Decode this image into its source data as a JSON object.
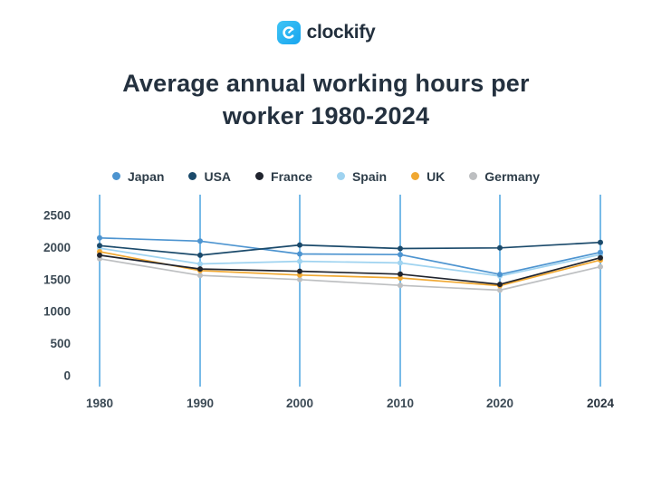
{
  "logo": {
    "brand": "clockify",
    "icon": "clockify-clock-c-icon"
  },
  "title": {
    "line1": "Average annual working hours per",
    "line2": "worker 1980-2024",
    "full": "Average annual working hours per worker 1980-2024"
  },
  "chart_data": {
    "type": "line",
    "title": "Average annual working hours per worker 1980-2024",
    "categories": [
      "1980",
      "1990",
      "2000",
      "2010",
      "2020",
      "2024"
    ],
    "series": [
      {
        "name": "Japan",
        "color": "#4d94d0",
        "values": [
          2150,
          2100,
          1900,
          1890,
          1580,
          1925
        ]
      },
      {
        "name": "USA",
        "color": "#1b4a6b",
        "values": [
          2030,
          1880,
          2040,
          1985,
          1995,
          2080
        ]
      },
      {
        "name": "France",
        "color": "#20242e",
        "values": [
          1880,
          1665,
          1630,
          1585,
          1425,
          1840
        ]
      },
      {
        "name": "Spain",
        "color": "#9fd3f0",
        "values": [
          1990,
          1745,
          1785,
          1760,
          1555,
          1890
        ]
      },
      {
        "name": "UK",
        "color": "#f0a832",
        "values": [
          1935,
          1640,
          1570,
          1525,
          1405,
          1805
        ]
      },
      {
        "name": "Germany",
        "color": "#bdbfc1",
        "values": [
          1825,
          1565,
          1500,
          1410,
          1335,
          1700
        ]
      }
    ],
    "yticks": [
      0,
      500,
      1000,
      1500,
      2000,
      2500
    ],
    "ylim": [
      0,
      2820
    ],
    "xlabel": "",
    "ylabel": "",
    "grid": "vertical-only",
    "gridline_color": "#57aae2",
    "legend_position": "top",
    "tick_color": "#3c4a55"
  },
  "colors": {
    "background": "#ffffff",
    "title_text": "#24313f",
    "legend_text": "#2e3d49",
    "logo_text": "#222f3d",
    "logo_icon": "#22b0f2"
  }
}
